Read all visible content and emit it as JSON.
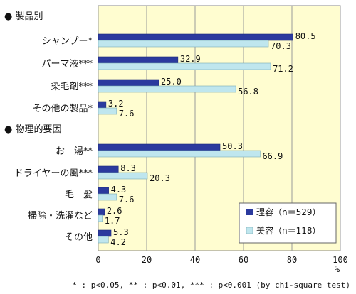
{
  "chart_data": {
    "type": "bar",
    "orientation": "horizontal",
    "sections": [
      {
        "title": "● 製品別",
        "categories": [
          "シャンプー*",
          "パーマ液***",
          "染毛剤***",
          "その他の製品*"
        ]
      },
      {
        "title": "● 物理的要因",
        "categories": [
          "お　湯**",
          "ドライヤーの風***",
          "毛　髪",
          "掃除・洗濯など",
          "その他"
        ]
      }
    ],
    "series": [
      {
        "name": "理容（n＝529）",
        "color": "#2b3a9e",
        "values": [
          80.5,
          32.9,
          25.0,
          3.2,
          50.3,
          8.3,
          4.3,
          2.6,
          5.3
        ],
        "labels": [
          "80.5",
          "32.9",
          "25.0",
          "3.2",
          "50.3",
          "8.3",
          "4.3",
          "2.6",
          "5.3"
        ]
      },
      {
        "name": "美容（n＝118）",
        "color": "#bfe6ee",
        "values": [
          70.3,
          71.2,
          56.8,
          7.6,
          66.9,
          20.3,
          7.6,
          1.7,
          4.2
        ],
        "labels": [
          "70.3",
          "71.2",
          "56.8",
          "7.6",
          "66.9",
          "20.3",
          "7.6",
          "1.7",
          "4.2"
        ]
      }
    ],
    "xlim": [
      0,
      100
    ],
    "xticks": [
      "0",
      "20",
      "40",
      "60",
      "80",
      "100"
    ],
    "xunit": "%",
    "grid": true,
    "legend_position": "bottom-right",
    "plot_background": "#fffdd0",
    "footnote": "* : p<0.05, ** : p<0.01, *** : p<0.001 (by chi-square test)"
  }
}
